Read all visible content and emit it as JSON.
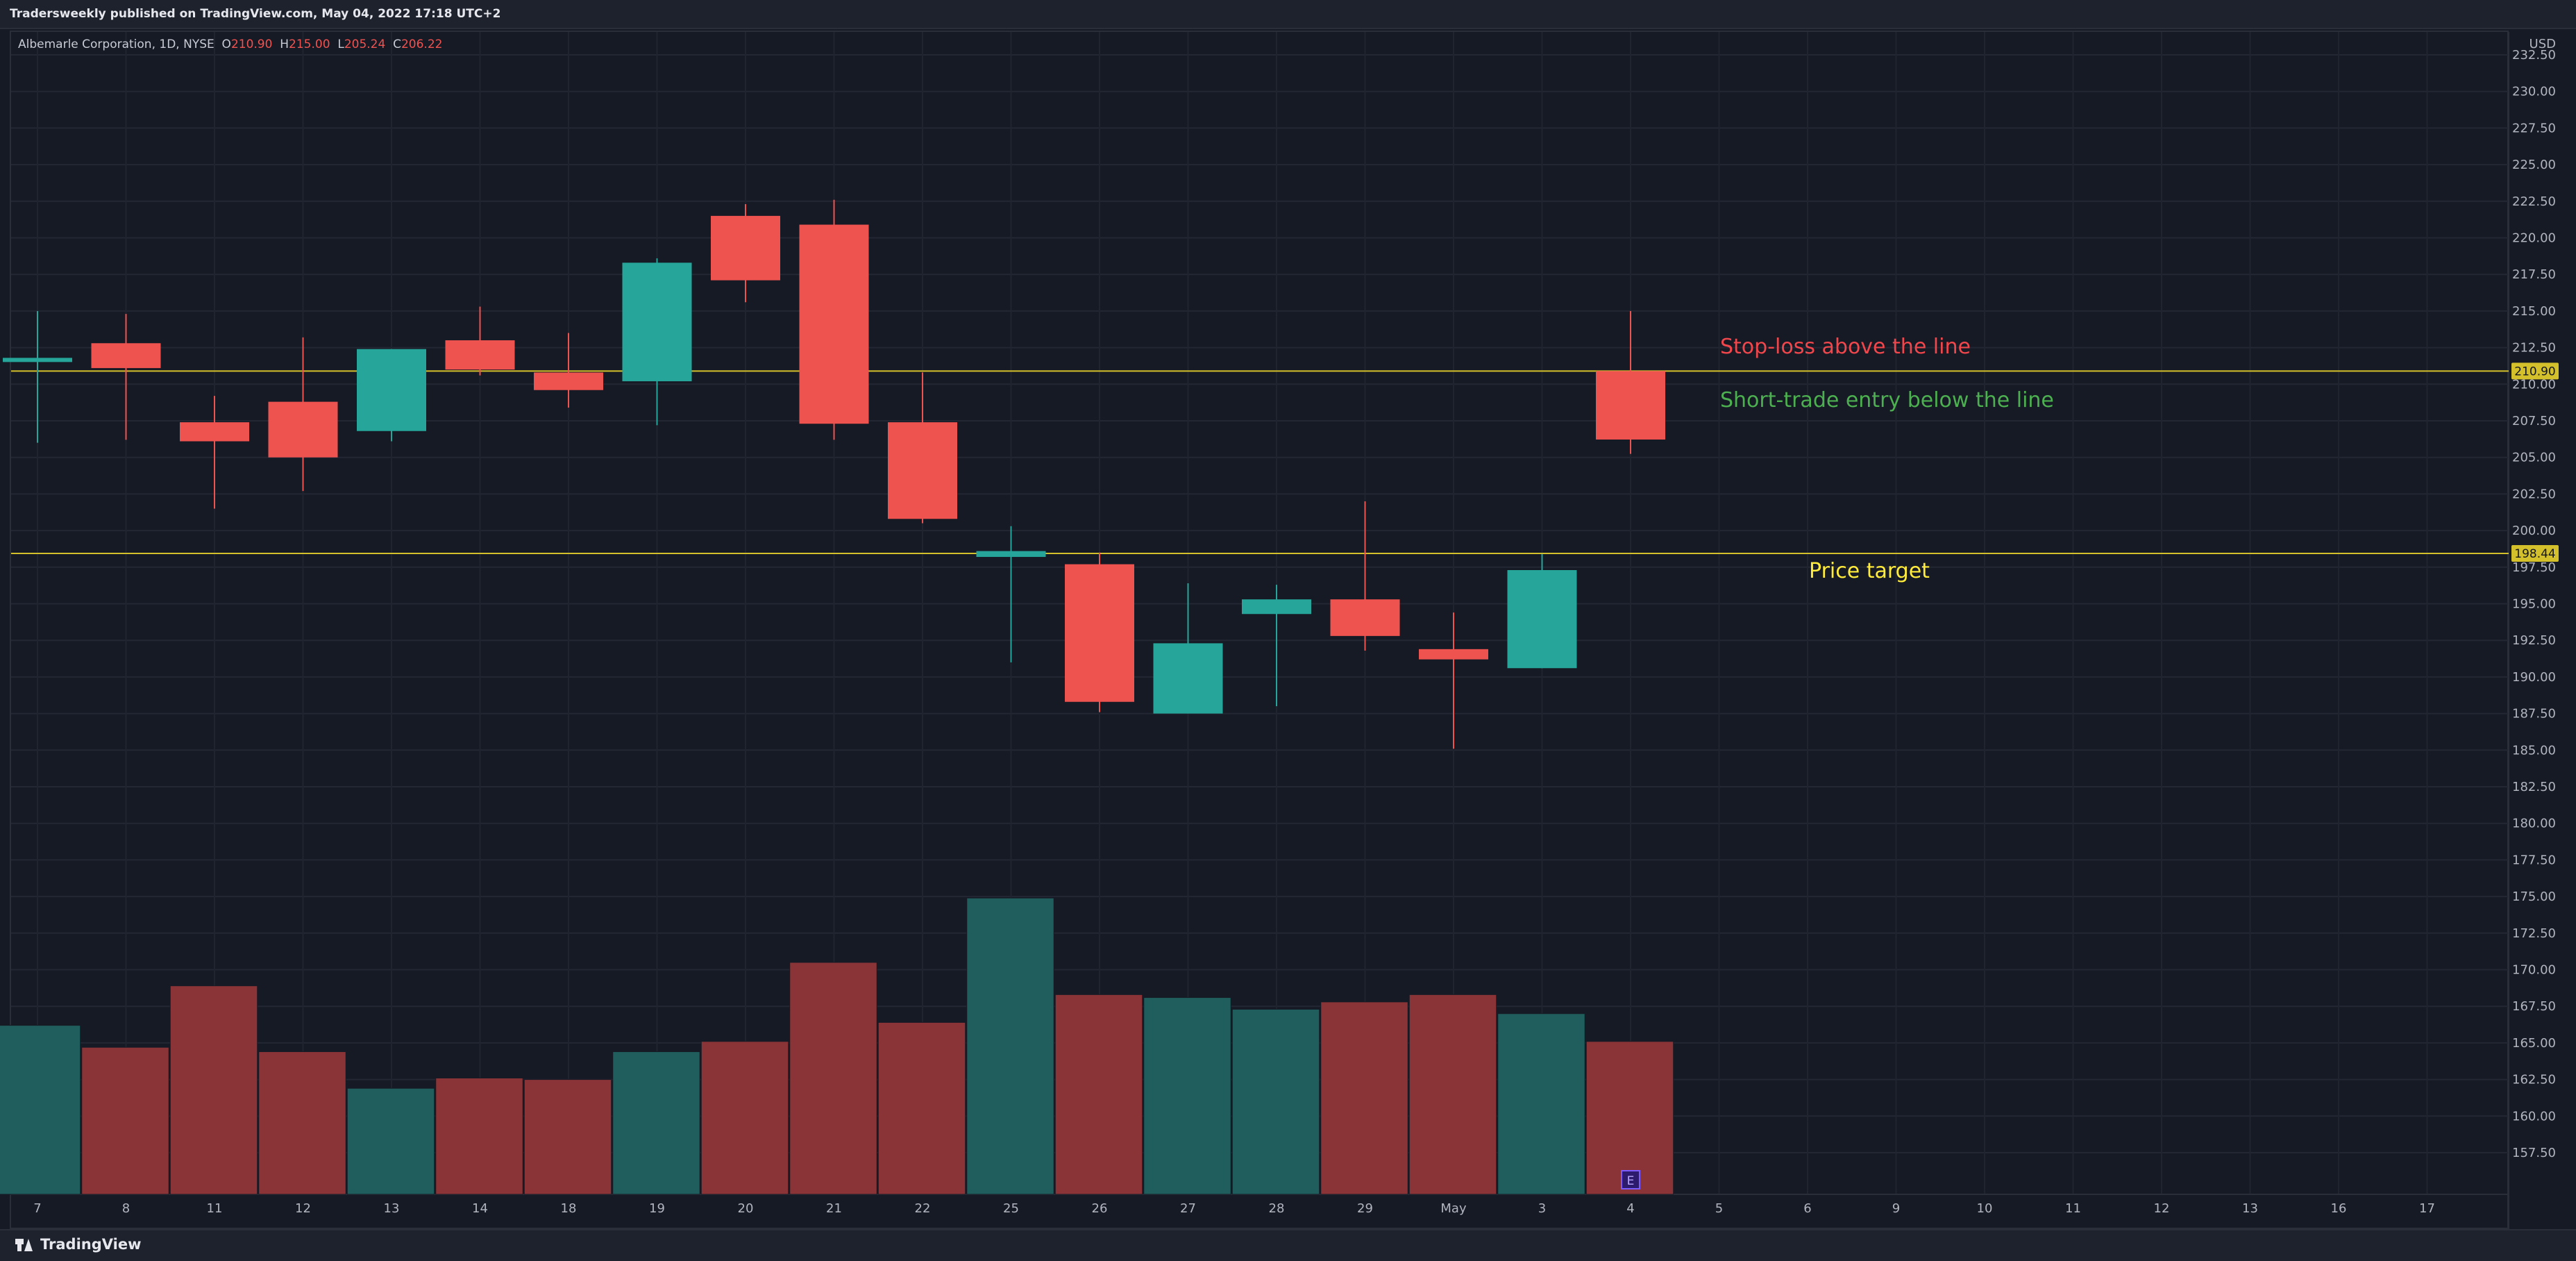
{
  "header": {
    "published_by": "Tradersweekly published on TradingView.com, May 04, 2022 17:18 UTC+2"
  },
  "legend": {
    "symbol": "Albemarle Corporation, 1D, NYSE",
    "open_label": "O",
    "open": "210.90",
    "high_label": "H",
    "high": "215.00",
    "low_label": "L",
    "low": "205.24",
    "close_label": "C",
    "close": "206.22"
  },
  "footer": {
    "brand": "TradingView"
  },
  "colors": {
    "up": "#26a69a",
    "down": "#ef5350",
    "vol_up": "#1f5e5c",
    "vol_down": "#8a3437",
    "line": "#d4c02a",
    "stop_loss_text": "#f0474c",
    "entry_text": "#4caf50",
    "target_text": "#ffeb3b"
  },
  "chart_data": {
    "type": "candlestick",
    "currency_label": "USD",
    "y_ticks": [
      "157.50",
      "160.00",
      "162.50",
      "165.00",
      "167.50",
      "170.00",
      "172.50",
      "175.00",
      "177.50",
      "180.00",
      "182.50",
      "185.00",
      "187.50",
      "190.00",
      "192.50",
      "195.00",
      "197.50",
      "200.00",
      "202.50",
      "205.00",
      "207.50",
      "210.00",
      "212.50",
      "215.00",
      "217.50",
      "220.00",
      "222.50",
      "225.00",
      "227.50",
      "230.00",
      "232.50"
    ],
    "ylim": [
      155.5,
      233.5
    ],
    "x_labels": [
      "7",
      "8",
      "11",
      "12",
      "13",
      "14",
      "18",
      "19",
      "20",
      "21",
      "22",
      "25",
      "26",
      "27",
      "28",
      "29",
      "May",
      "3",
      "4",
      "5",
      "6",
      "9",
      "10",
      "11",
      "12",
      "13",
      "16",
      "17"
    ],
    "candles": [
      {
        "o": 211.8,
        "h": 215.0,
        "l": 206.0,
        "c": 211.8,
        "v": 166.2
      },
      {
        "o": 212.8,
        "h": 214.8,
        "l": 206.2,
        "c": 211.1,
        "v": 164.7
      },
      {
        "o": 207.4,
        "h": 209.2,
        "l": 201.5,
        "c": 206.1,
        "v": 168.9
      },
      {
        "o": 208.8,
        "h": 213.2,
        "l": 202.7,
        "c": 205.0,
        "v": 164.4
      },
      {
        "o": 206.8,
        "h": 212.4,
        "l": 206.1,
        "c": 212.4,
        "v": 161.9
      },
      {
        "o": 213.0,
        "h": 215.3,
        "l": 210.6,
        "c": 211.0,
        "v": 162.6
      },
      {
        "o": 210.8,
        "h": 213.5,
        "l": 208.4,
        "c": 209.6,
        "v": 162.5
      },
      {
        "o": 210.2,
        "h": 218.6,
        "l": 207.2,
        "c": 218.3,
        "v": 164.4
      },
      {
        "o": 221.5,
        "h": 222.3,
        "l": 215.6,
        "c": 217.1,
        "v": 165.1
      },
      {
        "o": 220.9,
        "h": 222.6,
        "l": 206.2,
        "c": 207.3,
        "v": 170.5
      },
      {
        "o": 207.4,
        "h": 210.8,
        "l": 200.5,
        "c": 200.8,
        "v": 166.4
      },
      {
        "o": 198.2,
        "h": 200.3,
        "l": 191.0,
        "c": 198.6,
        "v": 174.9
      },
      {
        "o": 197.7,
        "h": 198.5,
        "l": 187.6,
        "c": 188.3,
        "v": 168.3
      },
      {
        "o": 187.5,
        "h": 196.4,
        "l": 187.5,
        "c": 192.3,
        "v": 168.1
      },
      {
        "o": 194.3,
        "h": 196.3,
        "l": 188.0,
        "c": 195.3,
        "v": 167.3
      },
      {
        "o": 195.3,
        "h": 202.0,
        "l": 191.8,
        "c": 192.8,
        "v": 167.8
      },
      {
        "o": 191.9,
        "h": 194.4,
        "l": 185.1,
        "c": 191.2,
        "v": 168.3
      },
      {
        "o": 190.6,
        "h": 198.4,
        "l": 190.6,
        "c": 197.3,
        "v": 167.0
      },
      {
        "o": 210.9,
        "h": 215.0,
        "l": 205.24,
        "c": 206.22,
        "v": 165.1
      }
    ],
    "horizontal_lines": [
      {
        "value": 210.9,
        "label": "210.90"
      },
      {
        "value": 198.44,
        "label": "198.44"
      }
    ],
    "annotations": {
      "stop_loss": "Stop-loss above the line",
      "entry": "Short-trade entry below the line",
      "target": "Price target"
    },
    "earnings_marker": "E"
  }
}
